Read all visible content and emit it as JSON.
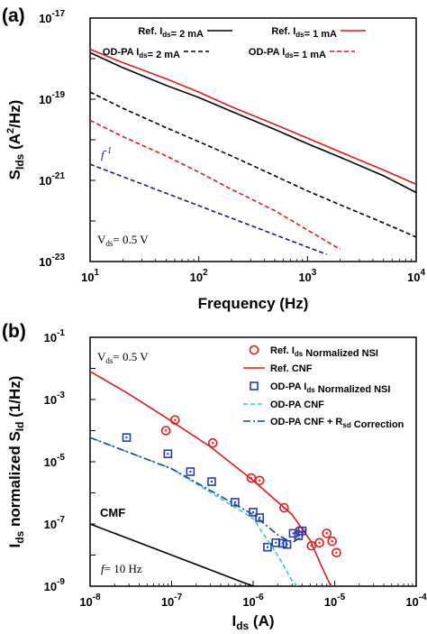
{
  "chart_data": [
    {
      "panel_label": "(a)",
      "type": "line",
      "xlabel": "Frequency (Hz)",
      "ylabel": "S_Ids (A²/Hz)",
      "xscale": "log",
      "yscale": "log",
      "xlim": [
        10,
        10000
      ],
      "ylim": [
        1e-23,
        1e-17
      ],
      "x_ticks": [
        "10^1",
        "10^2",
        "10^3",
        "10^4"
      ],
      "y_ticks": [
        "10^-23",
        "10^-21",
        "10^-19",
        "10^-17"
      ],
      "legend_position": "top-right",
      "series": [
        {
          "name": "Ref. Ids= 2 mA",
          "color": "#000000",
          "style": "solid",
          "x": [
            10,
            20,
            50,
            100,
            200,
            500,
            1000,
            2000,
            5000,
            10000
          ],
          "y": [
            1.4e-18,
            6e-19,
            2.2e-19,
            1.1e-19,
            5e-20,
            1.8e-20,
            8e-21,
            3.7e-21,
            1.3e-21,
            5e-22
          ]
        },
        {
          "name": "Ref. Ids= 1 mA",
          "color": "#e41a1c",
          "style": "solid",
          "x": [
            10,
            20,
            50,
            100,
            200,
            500,
            1000,
            2000,
            5000,
            10000
          ],
          "y": [
            1.7e-18,
            8e-19,
            3.2e-19,
            1.5e-19,
            6.5e-20,
            2.4e-20,
            1.1e-20,
            5e-21,
            1.8e-21,
            8e-22
          ]
        },
        {
          "name": "OD-PA Ids= 2 mA",
          "color": "#000000",
          "style": "dash",
          "x": [
            10,
            20,
            50,
            100,
            200,
            500,
            1000,
            2000,
            5000,
            10000
          ],
          "y": [
            1.5e-19,
            6e-20,
            2e-20,
            9e-21,
            4e-21,
            1.3e-21,
            5.5e-22,
            2.5e-22,
            9e-23,
            4e-23
          ]
        },
        {
          "name": "OD-PA Ids= 1 mA",
          "color": "#e41a1c",
          "style": "dash",
          "x": [
            10,
            20,
            50,
            100,
            200,
            500,
            1000,
            2000
          ],
          "y": [
            3e-20,
            1.2e-20,
            4e-21,
            1.6e-21,
            6e-22,
            1.8e-22,
            6e-23,
            2e-23
          ]
        },
        {
          "name": "",
          "color": "#1a1a8c",
          "style": "dash",
          "x": [
            10,
            1500
          ],
          "y": [
            2.5e-21,
            1.5e-23
          ]
        }
      ],
      "annotations": [
        "f^-1",
        "V_ds= 0.5 V"
      ]
    },
    {
      "panel_label": "(b)",
      "type": "scatter",
      "xlabel": "I_ds (A)",
      "ylabel": "I_ds normalized S_Id (1/Hz)",
      "xscale": "log",
      "yscale": "log",
      "xlim": [
        1e-08,
        0.0001
      ],
      "ylim": [
        1e-09,
        0.1
      ],
      "x_ticks": [
        "10^-8",
        "10^-7",
        "10^-6",
        "10^-5",
        "10^-4"
      ],
      "y_ticks": [
        "10^-9",
        "10^-7",
        "10^-5",
        "10^-3",
        "10^-1"
      ],
      "legend_position": "top-right",
      "series": [
        {
          "name": "Ref. Ids Normalized NSI",
          "color": "#e41a1c",
          "marker": "circle",
          "x": [
            8.5e-08,
            1.1e-07,
            3.2e-07,
            9.5e-07,
            1.2e-06,
            2.4e-06,
            3.7e-06,
            5.2e-06,
            6.5e-06,
            8e-06,
            9.3e-06,
            1.05e-05
          ],
          "y": [
            0.0001,
            0.00022,
            4e-05,
            3e-06,
            2.5e-06,
            3.3e-07,
            6e-08,
            2e-08,
            2.5e-08,
            5e-08,
            2.8e-08,
            1.2e-08
          ]
        },
        {
          "name": "Ref. CNF",
          "color": "#e41a1c",
          "style": "solid",
          "x": [
            1e-08,
            3e-08,
            1e-07,
            3e-07,
            1e-06,
            3e-06,
            5e-06,
            7e-06,
            9e-06
          ],
          "y": [
            0.008,
            0.0015,
            0.0002,
            3e-05,
            2.5e-06,
            2e-07,
            3e-08,
            4e-09,
            1e-09
          ]
        },
        {
          "name": "OD-PA Ids Normalized NSI",
          "color": "#1c3fbd",
          "marker": "square",
          "x": [
            2.8e-08,
            9e-08,
            1.7e-07,
            3.1e-07,
            6e-07,
            1e-06,
            1.2e-06,
            1.5e-06,
            1.9e-06,
            2.3e-06,
            2.6e-06,
            3.1e-06,
            3.6e-06,
            4e-06
          ],
          "y": [
            6e-05,
            1.8e-05,
            4.8e-06,
            2.3e-06,
            5e-07,
            2.4e-07,
            1.6e-07,
            1.8e-08,
            2.5e-08,
            2.4e-08,
            2.2e-08,
            5e-08,
            4.2e-08,
            6e-08
          ]
        },
        {
          "name": "OD-PA CNF",
          "color": "#33cccc",
          "style": "dash",
          "x": [
            1e-08,
            1e-07,
            1e-06,
            2e-06,
            3e-06,
            3.5e-06
          ],
          "y": [
            6e-05,
            6e-06,
            1.5e-07,
            1e-08,
            1.5e-09,
            1e-09
          ]
        },
        {
          "name": "OD-PA CNF + Rsd Correction",
          "color": "#1a3fa8",
          "style": "dashdot",
          "x": [
            1e-08,
            1e-07,
            1e-06,
            2e-06,
            3e-06,
            4e-06,
            4.5e-06
          ],
          "y": [
            6e-05,
            6e-06,
            2e-07,
            4.5e-08,
            2.5e-08,
            4e-08,
            7e-08
          ]
        },
        {
          "name": "",
          "color": "#000000",
          "style": "solid",
          "x": [
            1e-08,
            1e-06
          ],
          "y": [
            1e-07,
            1e-09
          ]
        }
      ],
      "annotations": [
        "V_ds= 0.5 V",
        "CMF",
        "f = 10 Hz"
      ]
    }
  ]
}
